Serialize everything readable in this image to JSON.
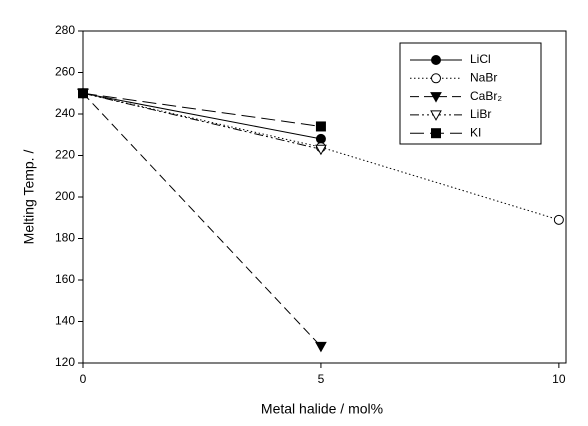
{
  "chart_data": {
    "type": "line",
    "x_label": "Metal halide / mol%",
    "y_label": "Melting Temp. /",
    "x": [
      0,
      5,
      10
    ],
    "series": [
      {
        "name": "LiCl",
        "color": "#000000",
        "line_style": "solid",
        "marker": "filled-circle",
        "values": [
          250,
          228,
          null
        ]
      },
      {
        "name": "NaBr",
        "color": "#000000",
        "line_style": "dotted",
        "marker": "open-circle",
        "values": [
          250,
          224,
          189
        ]
      },
      {
        "name": "CaBr₂",
        "color": "#000000",
        "line_style": "dashed",
        "marker": "filled-triangle-down",
        "values": [
          250,
          128,
          null
        ]
      },
      {
        "name": "LiBr",
        "color": "#000000",
        "line_style": "dash-dot-dot",
        "marker": "open-triangle-down",
        "values": [
          250,
          223,
          null
        ]
      },
      {
        "name": "KI",
        "color": "#000000",
        "line_style": "long-dash",
        "marker": "filled-square",
        "values": [
          250,
          234,
          null
        ]
      }
    ],
    "xlim": [
      0,
      10.15
    ],
    "xticks": [
      0,
      5,
      10
    ],
    "ylim": [
      120,
      280
    ],
    "yticks": [
      120,
      140,
      160,
      180,
      200,
      220,
      240,
      260,
      280
    ],
    "legend": "upper right",
    "grid": false
  }
}
